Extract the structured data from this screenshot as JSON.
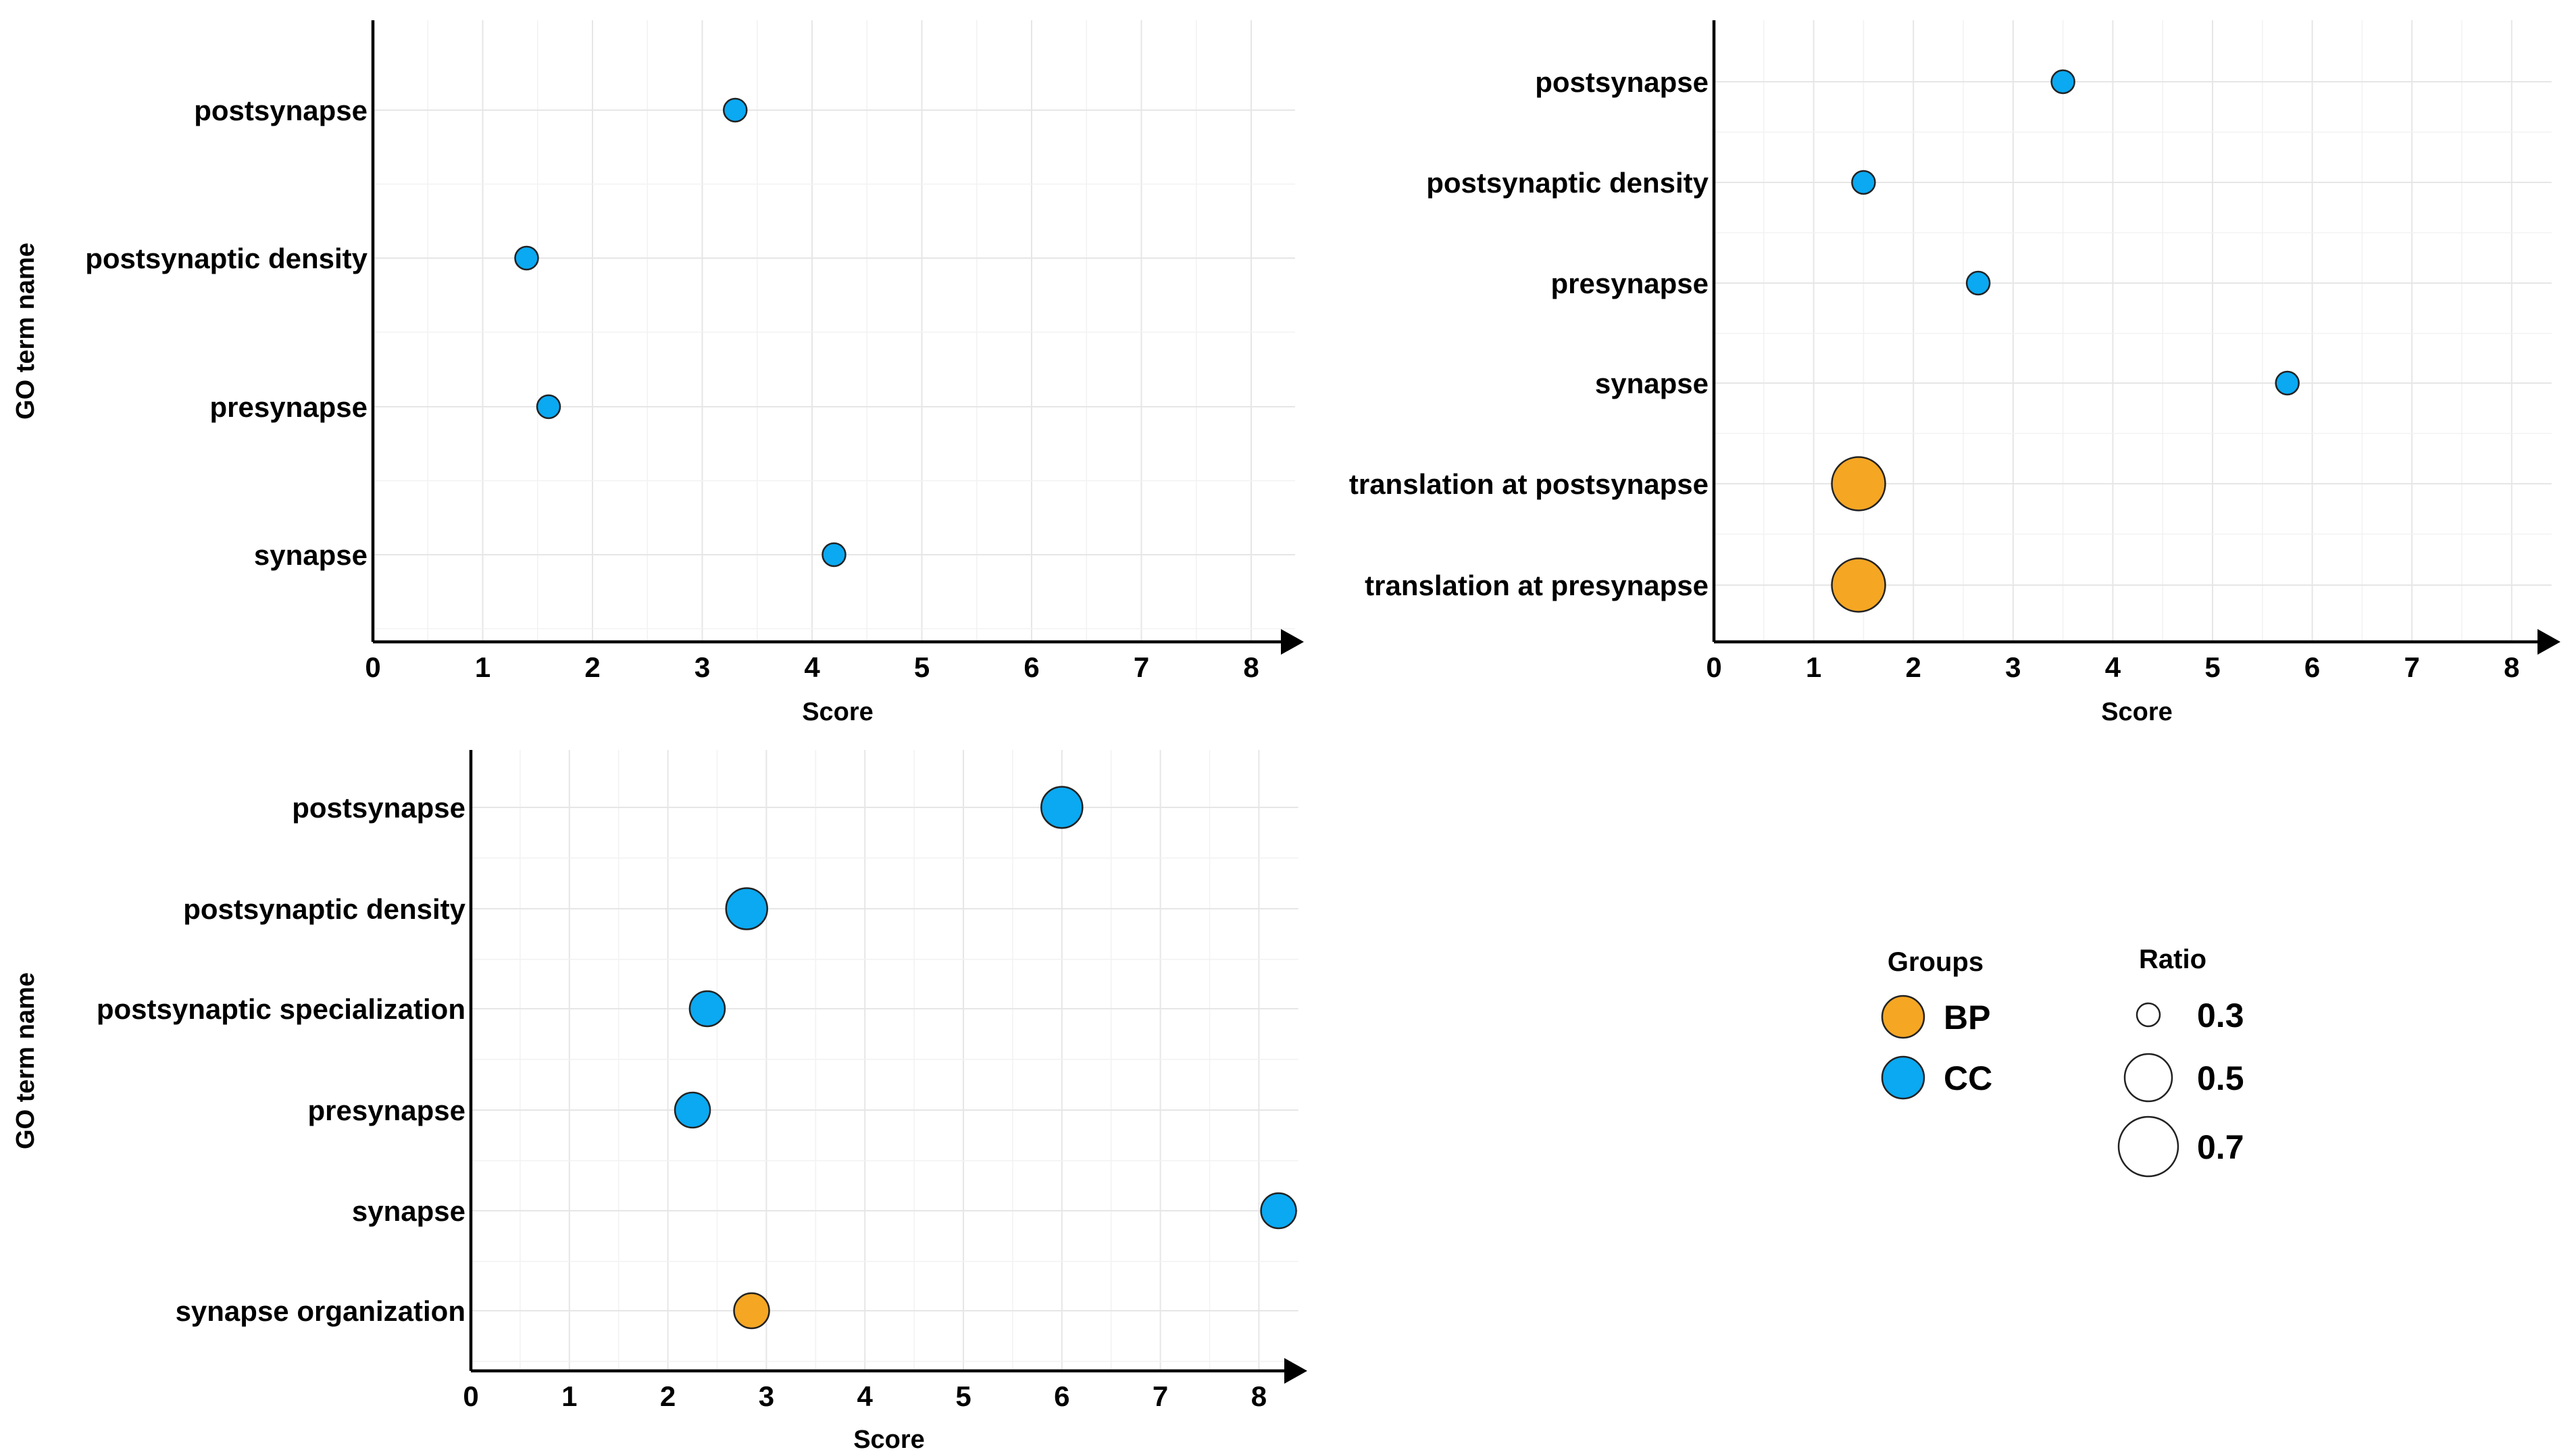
{
  "colors": {
    "BP": "#F5A623",
    "CC": "#0AA9F2"
  },
  "chart_data": [
    {
      "type": "scatter",
      "title": "",
      "xlabel": "Score",
      "ylabel": "GO term name",
      "xlim": [
        0,
        8.4
      ],
      "xticks": [
        0,
        1,
        2,
        3,
        4,
        5,
        6,
        7,
        8
      ],
      "categories": [
        "postsynapse",
        "postsynaptic density",
        "presynapse",
        "synapse"
      ],
      "points": [
        {
          "term": "postsynapse",
          "score": 3.3,
          "group": "CC",
          "ratio": 0.3
        },
        {
          "term": "postsynaptic density",
          "score": 1.4,
          "group": "CC",
          "ratio": 0.3
        },
        {
          "term": "presynapse",
          "score": 1.6,
          "group": "CC",
          "ratio": 0.3
        },
        {
          "term": "synapse",
          "score": 4.2,
          "group": "CC",
          "ratio": 0.3
        }
      ]
    },
    {
      "type": "scatter",
      "title": "",
      "xlabel": "Score",
      "ylabel": "",
      "xlim": [
        0,
        8.4
      ],
      "xticks": [
        0,
        1,
        2,
        3,
        4,
        5,
        6,
        7,
        8
      ],
      "categories": [
        "postsynapse",
        "postsynaptic density",
        "presynapse",
        "synapse",
        "translation at postsynapse",
        "translation at presynapse"
      ],
      "points": [
        {
          "term": "postsynapse",
          "score": 3.5,
          "group": "CC",
          "ratio": 0.3
        },
        {
          "term": "postsynaptic density",
          "score": 1.5,
          "group": "CC",
          "ratio": 0.3
        },
        {
          "term": "presynapse",
          "score": 2.65,
          "group": "CC",
          "ratio": 0.3
        },
        {
          "term": "synapse",
          "score": 5.75,
          "group": "CC",
          "ratio": 0.3
        },
        {
          "term": "translation at postsynapse",
          "score": 1.45,
          "group": "BP",
          "ratio": 0.55
        },
        {
          "term": "translation at presynapse",
          "score": 1.45,
          "group": "BP",
          "ratio": 0.55
        }
      ]
    },
    {
      "type": "scatter",
      "title": "",
      "xlabel": "Score",
      "ylabel": "GO term name",
      "xlim": [
        0,
        8.4
      ],
      "xticks": [
        0,
        1,
        2,
        3,
        4,
        5,
        6,
        7,
        8
      ],
      "categories": [
        "postsynapse",
        "postsynaptic density",
        "postsynaptic specialization",
        "presynapse",
        "synapse",
        "synapse organization"
      ],
      "points": [
        {
          "term": "postsynapse",
          "score": 6.0,
          "group": "CC",
          "ratio": 0.45
        },
        {
          "term": "postsynaptic density",
          "score": 2.8,
          "group": "CC",
          "ratio": 0.45
        },
        {
          "term": "postsynaptic specialization",
          "score": 2.4,
          "group": "CC",
          "ratio": 0.4
        },
        {
          "term": "presynapse",
          "score": 2.25,
          "group": "CC",
          "ratio": 0.4
        },
        {
          "term": "synapse",
          "score": 8.2,
          "group": "CC",
          "ratio": 0.4
        },
        {
          "term": "synapse organization",
          "score": 2.85,
          "group": "BP",
          "ratio": 0.4
        }
      ]
    }
  ],
  "legend": {
    "groups_title": "Groups",
    "groups": [
      {
        "label": "BP",
        "color": "#F5A623"
      },
      {
        "label": "CC",
        "color": "#0AA9F2"
      }
    ],
    "ratio_title": "Ratio",
    "ratios": [
      {
        "label": "0.3",
        "value": 0.3
      },
      {
        "label": "0.5",
        "value": 0.5
      },
      {
        "label": "0.7",
        "value": 0.7
      }
    ]
  }
}
